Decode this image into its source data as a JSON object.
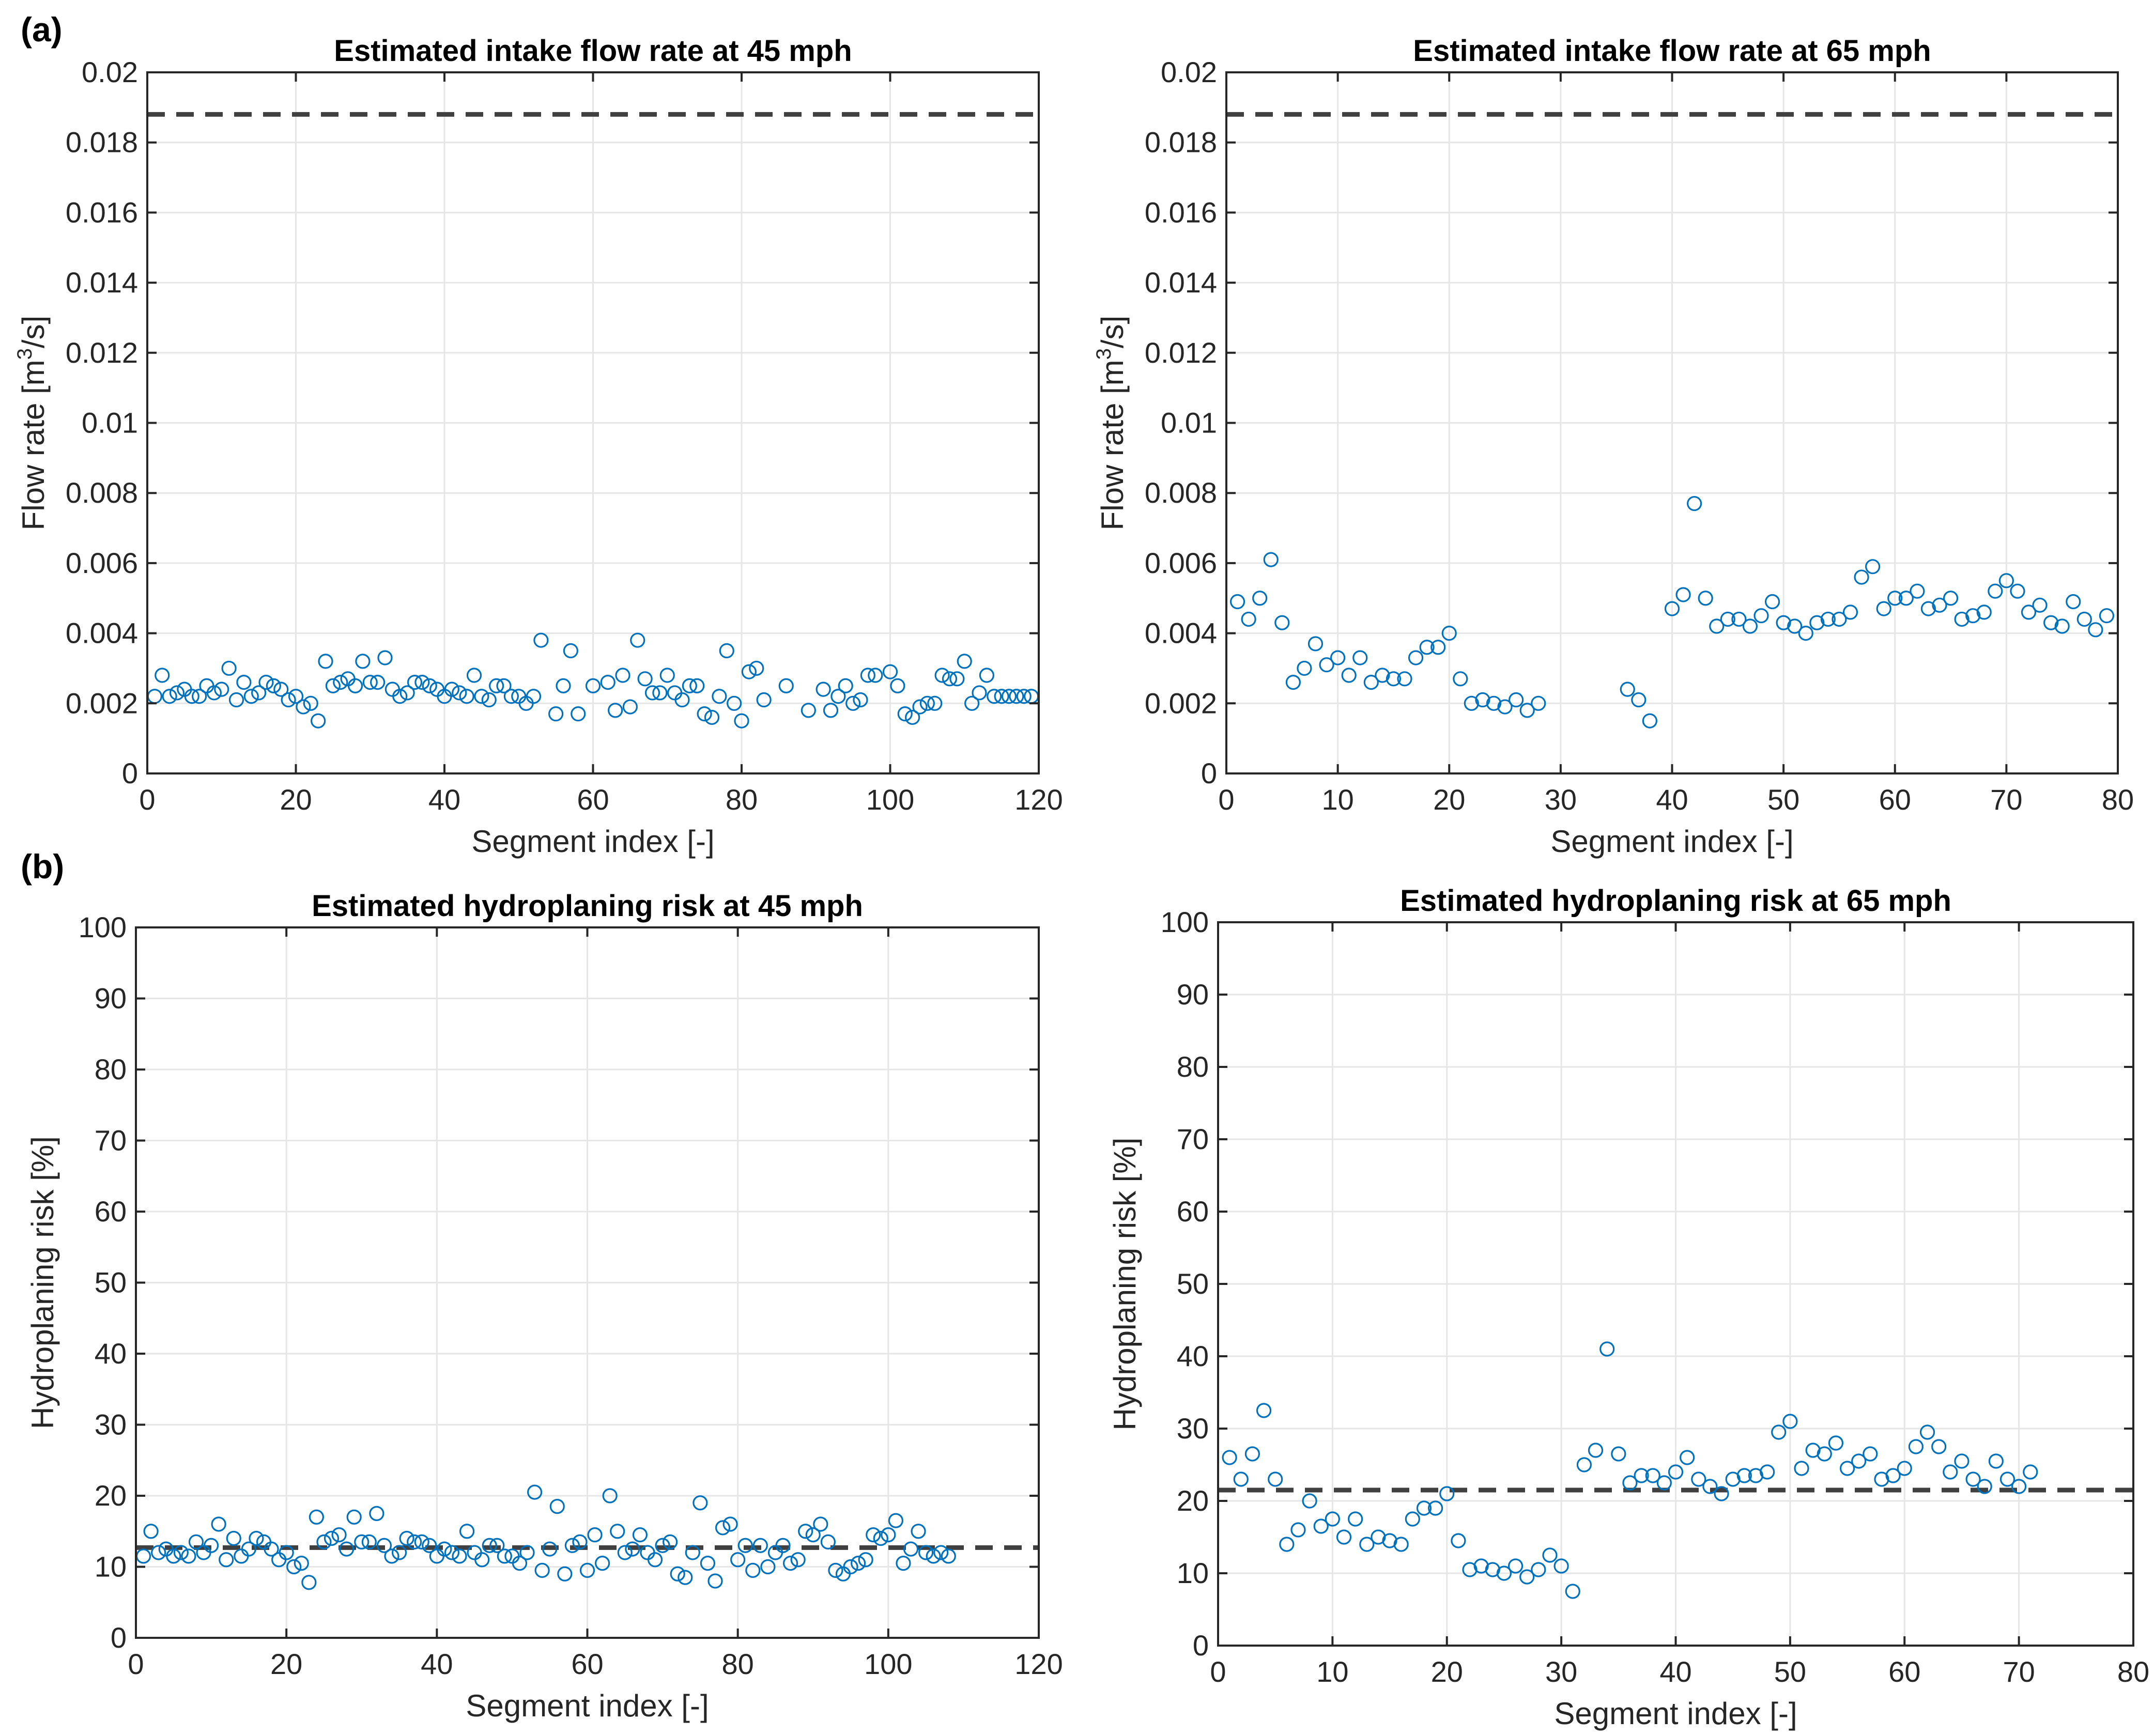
{
  "panel_labels": [
    "(a)",
    "(b)"
  ],
  "colors": {
    "marker": "#0072BD",
    "reference_line": "#404040",
    "grid": "#e6e6e6",
    "axis": "#262626"
  },
  "chart_data": [
    {
      "type": "scatter",
      "title": "Estimated intake flow rate at 45 mph",
      "xlabel": "Segment index [-]",
      "ylabel_parts": [
        "Flow rate [m",
        "3",
        "/s]"
      ],
      "xlim": [
        0,
        120
      ],
      "ylim": [
        0,
        0.02
      ],
      "xticks": [
        0,
        20,
        40,
        60,
        80,
        100,
        120
      ],
      "yticks": [
        0,
        0.002,
        0.004,
        0.006,
        0.008,
        0.01,
        0.012,
        0.014,
        0.016,
        0.018,
        0.02
      ],
      "ytick_labels": [
        "0",
        "0.002",
        "0.004",
        "0.006",
        "0.008",
        "0.01",
        "0.012",
        "0.014",
        "0.016",
        "0.018",
        "0.02"
      ],
      "grid": true,
      "reference_line": 0.0188,
      "x": [
        1,
        2,
        3,
        4,
        5,
        6,
        7,
        8,
        9,
        10,
        11,
        12,
        13,
        14,
        15,
        16,
        17,
        18,
        19,
        20,
        21,
        22,
        23,
        24,
        25,
        26,
        27,
        28,
        29,
        30,
        31,
        32,
        33,
        34,
        35,
        36,
        37,
        38,
        39,
        40,
        41,
        42,
        43,
        44,
        45,
        46,
        47,
        48,
        49,
        50,
        51,
        52,
        53,
        55,
        56,
        57,
        58,
        60,
        62,
        63,
        64,
        65,
        66,
        67,
        68,
        69,
        70,
        71,
        72,
        73,
        74,
        75,
        76,
        77,
        78,
        79,
        80,
        81,
        82,
        83,
        86,
        89,
        91,
        92,
        93,
        94,
        95,
        96,
        97,
        98,
        100,
        101,
        102,
        103,
        104,
        105,
        106,
        107,
        108,
        109,
        110,
        111,
        112,
        113,
        114,
        115,
        116,
        117,
        118,
        119
      ],
      "y": [
        0.0022,
        0.0028,
        0.0022,
        0.0023,
        0.0024,
        0.0022,
        0.0022,
        0.0025,
        0.0023,
        0.0024,
        0.003,
        0.0021,
        0.0026,
        0.0022,
        0.0023,
        0.0026,
        0.0025,
        0.0024,
        0.0021,
        0.0022,
        0.0019,
        0.002,
        0.0015,
        0.0032,
        0.0025,
        0.0026,
        0.0027,
        0.0025,
        0.0032,
        0.0026,
        0.0026,
        0.0033,
        0.0024,
        0.0022,
        0.0023,
        0.0026,
        0.0026,
        0.0025,
        0.0024,
        0.0022,
        0.0024,
        0.0023,
        0.0022,
        0.0028,
        0.0022,
        0.0021,
        0.0025,
        0.0025,
        0.0022,
        0.0022,
        0.002,
        0.0022,
        0.0038,
        0.0017,
        0.0025,
        0.0035,
        0.0017,
        0.0025,
        0.0026,
        0.0018,
        0.0028,
        0.0019,
        0.0038,
        0.0027,
        0.0023,
        0.0023,
        0.0028,
        0.0023,
        0.0021,
        0.0025,
        0.0025,
        0.0017,
        0.0016,
        0.0022,
        0.0035,
        0.002,
        0.0015,
        0.0029,
        0.003,
        0.0021,
        0.0025,
        0.0018,
        0.0024,
        0.0018,
        0.0022,
        0.0025,
        0.002,
        0.0021,
        0.0028,
        0.0028,
        0.0029,
        0.0025,
        0.0017,
        0.0016,
        0.0019,
        0.002,
        0.002,
        0.0028,
        0.0027,
        0.0027,
        0.0032,
        0.002,
        0.0023,
        0.0028,
        0.0022,
        0.0022,
        0.0022,
        0.0022,
        0.0022,
        0.0022
      ]
    },
    {
      "type": "scatter",
      "title": "Estimated intake flow rate at 65 mph",
      "xlabel": "Segment index [-]",
      "ylabel_parts": [
        "Flow rate [m",
        "3",
        "/s]"
      ],
      "xlim": [
        0,
        80
      ],
      "ylim": [
        0,
        0.02
      ],
      "xticks": [
        0,
        10,
        20,
        30,
        40,
        50,
        60,
        70,
        80
      ],
      "yticks": [
        0,
        0.002,
        0.004,
        0.006,
        0.008,
        0.01,
        0.012,
        0.014,
        0.016,
        0.018,
        0.02
      ],
      "ytick_labels": [
        "0",
        "0.002",
        "0.004",
        "0.006",
        "0.008",
        "0.01",
        "0.012",
        "0.014",
        "0.016",
        "0.018",
        "0.02"
      ],
      "grid": true,
      "reference_line": 0.0188,
      "x": [
        1,
        2,
        3,
        4,
        5,
        6,
        7,
        8,
        9,
        10,
        11,
        12,
        13,
        14,
        15,
        16,
        17,
        18,
        19,
        20,
        21,
        22,
        23,
        24,
        25,
        26,
        27,
        28,
        36,
        37,
        38,
        40,
        41,
        42,
        43,
        44,
        45,
        46,
        47,
        48,
        49,
        50,
        51,
        52,
        53,
        54,
        55,
        56,
        57,
        58,
        59,
        60,
        61,
        62,
        63,
        64,
        65,
        66,
        67,
        68,
        69,
        70,
        71,
        72,
        73,
        74,
        75,
        76,
        77,
        78,
        79
      ],
      "y": [
        0.0049,
        0.0044,
        0.005,
        0.0061,
        0.0043,
        0.0026,
        0.003,
        0.0037,
        0.0031,
        0.0033,
        0.0028,
        0.0033,
        0.0026,
        0.0028,
        0.0027,
        0.0027,
        0.0033,
        0.0036,
        0.0036,
        0.004,
        0.0027,
        0.002,
        0.0021,
        0.002,
        0.0019,
        0.0021,
        0.0018,
        0.002,
        0.0024,
        0.0021,
        0.0015,
        0.0047,
        0.0051,
        0.0077,
        0.005,
        0.0042,
        0.0044,
        0.0044,
        0.0042,
        0.0045,
        0.0049,
        0.0043,
        0.0042,
        0.004,
        0.0043,
        0.0044,
        0.0044,
        0.0046,
        0.0056,
        0.0059,
        0.0047,
        0.005,
        0.005,
        0.0052,
        0.0047,
        0.0048,
        0.005,
        0.0044,
        0.0045,
        0.0046,
        0.0052,
        0.0055,
        0.0052,
        0.0046,
        0.0048,
        0.0043,
        0.0042,
        0.0049,
        0.0044,
        0.0041,
        0.0045
      ]
    },
    {
      "type": "scatter",
      "title": "Estimated hydroplaning risk at 45 mph",
      "xlabel": "Segment index [-]",
      "ylabel_parts": [
        "Hydroplaning risk [%]"
      ],
      "xlim": [
        0,
        120
      ],
      "ylim": [
        0,
        100
      ],
      "xticks": [
        0,
        20,
        40,
        60,
        80,
        100,
        120
      ],
      "yticks": [
        0,
        10,
        20,
        30,
        40,
        50,
        60,
        70,
        80,
        90,
        100
      ],
      "ytick_labels": [
        "0",
        "10",
        "20",
        "30",
        "40",
        "50",
        "60",
        "70",
        "80",
        "90",
        "100"
      ],
      "grid": true,
      "reference_line": 12.7,
      "x": [
        1,
        2,
        3,
        4,
        5,
        6,
        7,
        8,
        9,
        10,
        11,
        12,
        13,
        14,
        15,
        16,
        17,
        18,
        19,
        20,
        21,
        22,
        23,
        24,
        25,
        26,
        27,
        28,
        29,
        30,
        31,
        32,
        33,
        34,
        35,
        36,
        37,
        38,
        39,
        40,
        41,
        42,
        43,
        44,
        45,
        46,
        47,
        48,
        49,
        50,
        51,
        52,
        53,
        54,
        55,
        56,
        57,
        58,
        59,
        60,
        61,
        62,
        63,
        64,
        65,
        66,
        67,
        68,
        69,
        70,
        71,
        72,
        73,
        74,
        75,
        76,
        77,
        78,
        79,
        80,
        81,
        82,
        83,
        84,
        85,
        86,
        87,
        88,
        89,
        90,
        91,
        92,
        93,
        94,
        95,
        96,
        97,
        98,
        99,
        100,
        101,
        102,
        103,
        104,
        105,
        106,
        107,
        108
      ],
      "y": [
        11.5,
        15.0,
        12.0,
        12.5,
        11.5,
        12.0,
        11.5,
        13.5,
        12.0,
        13.0,
        16.0,
        11.0,
        14.0,
        11.5,
        12.5,
        14.0,
        13.5,
        12.5,
        11.0,
        12.0,
        10.0,
        10.5,
        7.8,
        17.0,
        13.5,
        14.0,
        14.5,
        12.5,
        17.0,
        13.5,
        13.5,
        17.5,
        13.0,
        11.5,
        12.0,
        14.0,
        13.5,
        13.5,
        13.0,
        11.5,
        12.5,
        12.0,
        11.5,
        15.0,
        12.0,
        11.0,
        13.0,
        13.0,
        11.5,
        11.5,
        10.5,
        12.0,
        20.5,
        9.5,
        12.5,
        18.5,
        9.0,
        13.0,
        13.5,
        9.5,
        14.5,
        10.5,
        20.0,
        15.0,
        12.0,
        12.5,
        14.5,
        12.0,
        11.0,
        13.0,
        13.5,
        9.0,
        8.5,
        12.0,
        19.0,
        10.5,
        8.0,
        15.5,
        16.0,
        11.0,
        13.0,
        9.5,
        13.0,
        10.0,
        12.0,
        13.0,
        10.5,
        11.0,
        15.0,
        14.5,
        16.0,
        13.5,
        9.5,
        9.0,
        10.0,
        10.5,
        11.0,
        14.5,
        14.0,
        14.5,
        16.5,
        10.5,
        12.5,
        15.0,
        12.0,
        11.5,
        12.0,
        11.5
      ]
    },
    {
      "type": "scatter",
      "title": "Estimated hydroplaning risk at 65 mph",
      "xlabel": "Segment index [-]",
      "ylabel_parts": [
        "Hydroplaning risk [%]"
      ],
      "xlim": [
        0,
        80
      ],
      "ylim": [
        0,
        100
      ],
      "xticks": [
        0,
        10,
        20,
        30,
        40,
        50,
        60,
        70,
        80
      ],
      "yticks": [
        0,
        10,
        20,
        30,
        40,
        50,
        60,
        70,
        80,
        90,
        100
      ],
      "ytick_labels": [
        "0",
        "10",
        "20",
        "30",
        "40",
        "50",
        "60",
        "70",
        "80",
        "90",
        "100"
      ],
      "grid": true,
      "reference_line": 21.5,
      "x": [
        1,
        2,
        3,
        4,
        5,
        6,
        7,
        8,
        9,
        10,
        11,
        12,
        13,
        14,
        15,
        16,
        17,
        18,
        19,
        20,
        21,
        22,
        23,
        24,
        25,
        26,
        27,
        28,
        29,
        30,
        31,
        32,
        33,
        34,
        35,
        36,
        37,
        38,
        39,
        40,
        41,
        42,
        43,
        44,
        45,
        46,
        47,
        48,
        49,
        50,
        51,
        52,
        53,
        54,
        55,
        56,
        57,
        58,
        59,
        60,
        61,
        62,
        63,
        64,
        65,
        66,
        67,
        68,
        69,
        70,
        71
      ],
      "y": [
        26.0,
        23.0,
        26.5,
        32.5,
        23.0,
        14.0,
        16.0,
        20.0,
        16.5,
        17.5,
        15.0,
        17.5,
        14.0,
        15.0,
        14.5,
        14.0,
        17.5,
        19.0,
        19.0,
        21.0,
        14.5,
        10.5,
        11.0,
        10.5,
        10.0,
        11.0,
        9.5,
        10.5,
        12.5,
        11.0,
        7.5,
        25.0,
        27.0,
        41.0,
        26.5,
        22.5,
        23.5,
        23.5,
        22.5,
        24.0,
        26.0,
        23.0,
        22.0,
        21.0,
        23.0,
        23.5,
        23.5,
        24.0,
        29.5,
        31.0,
        24.5,
        27.0,
        26.5,
        28.0,
        24.5,
        25.5,
        26.5,
        23.0,
        23.5,
        24.5,
        27.5,
        29.5,
        27.5,
        24.0,
        25.5,
        23.0,
        22.0,
        25.5,
        23.0,
        22.0,
        24.0
      ]
    }
  ]
}
